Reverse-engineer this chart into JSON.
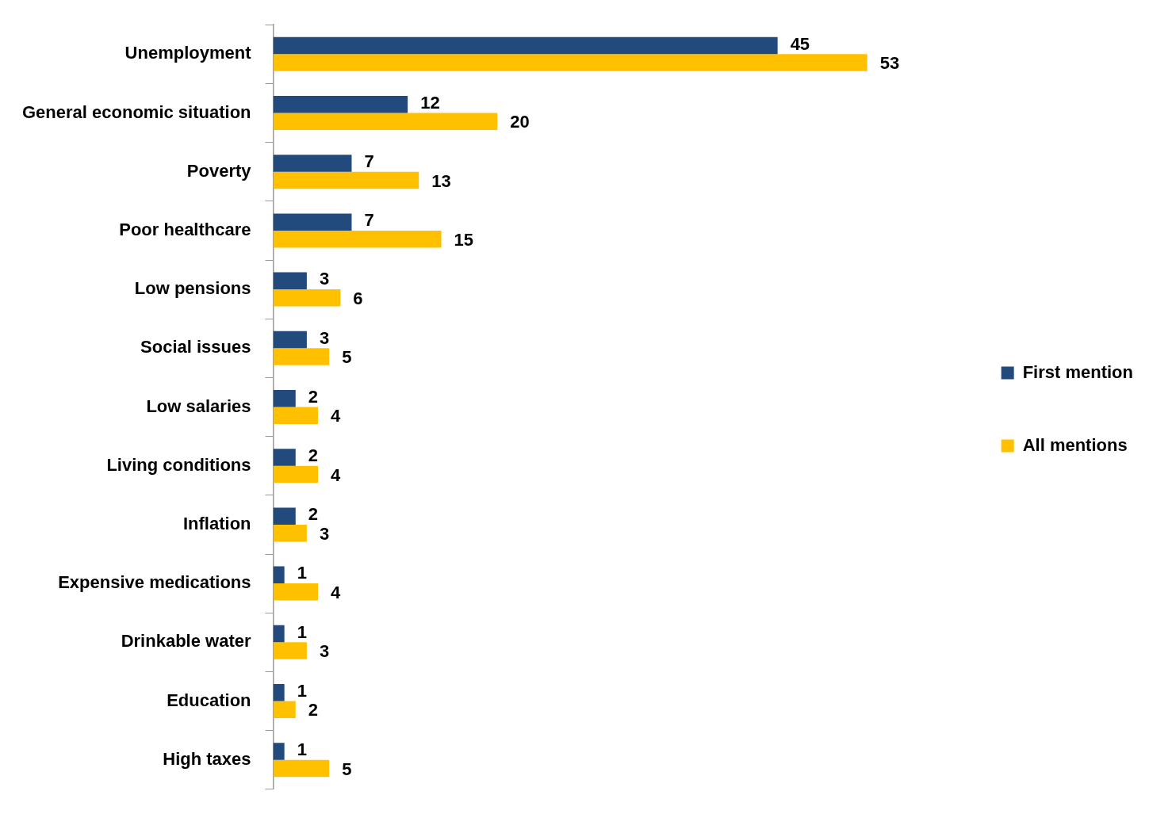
{
  "chart_data": {
    "type": "bar",
    "orientation": "horizontal",
    "categories": [
      "Unemployment",
      "General economic situation",
      "Poverty",
      "Poor healthcare",
      "Low pensions",
      "Social issues",
      "Low salaries",
      "Living conditions",
      "Inflation",
      "Expensive medications",
      "Drinkable water",
      "Education",
      "High taxes"
    ],
    "series": [
      {
        "name": "First mention",
        "color": "#234a7c",
        "values": [
          45,
          12,
          7,
          7,
          3,
          3,
          2,
          2,
          2,
          1,
          1,
          1,
          1
        ]
      },
      {
        "name": "All mentions",
        "color": "#ffc000",
        "values": [
          53,
          20,
          13,
          15,
          6,
          5,
          4,
          4,
          3,
          4,
          3,
          2,
          5
        ]
      }
    ],
    "data_labels": true,
    "legend": "right"
  }
}
